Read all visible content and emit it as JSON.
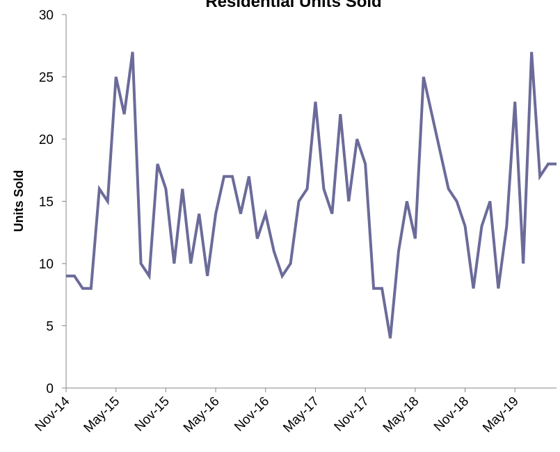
{
  "chart_data": {
    "type": "line",
    "title": "Residential Units Sold",
    "xlabel": "",
    "ylabel": "Units Sold",
    "ylim": [
      0,
      30
    ],
    "yticks": [
      0,
      5,
      10,
      15,
      20,
      25,
      30
    ],
    "x_tick_labels": [
      "Nov-14",
      "May-15",
      "Nov-15",
      "May-16",
      "Nov-16",
      "May-17",
      "Nov-17",
      "May-18",
      "Nov-18",
      "May-19"
    ],
    "x": [
      "Nov-14",
      "Dec-14",
      "Jan-15",
      "Feb-15",
      "Mar-15",
      "Apr-15",
      "May-15",
      "Jun-15",
      "Jul-15",
      "Aug-15",
      "Sep-15",
      "Oct-15",
      "Nov-15",
      "Dec-15",
      "Jan-16",
      "Feb-16",
      "Mar-16",
      "Apr-16",
      "May-16",
      "Jun-16",
      "Jul-16",
      "Aug-16",
      "Sep-16",
      "Oct-16",
      "Nov-16",
      "Dec-16",
      "Jan-17",
      "Feb-17",
      "Mar-17",
      "Apr-17",
      "May-17",
      "Jun-17",
      "Jul-17",
      "Aug-17",
      "Sep-17",
      "Oct-17",
      "Nov-17",
      "Dec-17",
      "Jan-18",
      "Feb-18",
      "Mar-18",
      "Apr-18",
      "May-18",
      "Jun-18",
      "Jul-18",
      "Aug-18",
      "Sep-18",
      "Oct-18",
      "Nov-18",
      "Dec-18",
      "Jan-19",
      "Feb-19",
      "Mar-19",
      "Apr-19",
      "May-19",
      "Jun-19",
      "Jul-19",
      "Aug-19",
      "Sep-19",
      "Oct-19"
    ],
    "series": [
      {
        "values": [
          9,
          9,
          8,
          8,
          16,
          15,
          25,
          22,
          27,
          10,
          9,
          18,
          16,
          10,
          16,
          10,
          14,
          9,
          14,
          17,
          17,
          14,
          17,
          12,
          14,
          11,
          9,
          10,
          15,
          16,
          23,
          16,
          14,
          22,
          15,
          20,
          18,
          8,
          8,
          4,
          11,
          15,
          12,
          25,
          22,
          19,
          16,
          15,
          13,
          8,
          13,
          15,
          8,
          13,
          23,
          10,
          27,
          17,
          18,
          18
        ],
        "color": "#6b6b9a"
      }
    ],
    "grid": false,
    "legend": "none"
  }
}
